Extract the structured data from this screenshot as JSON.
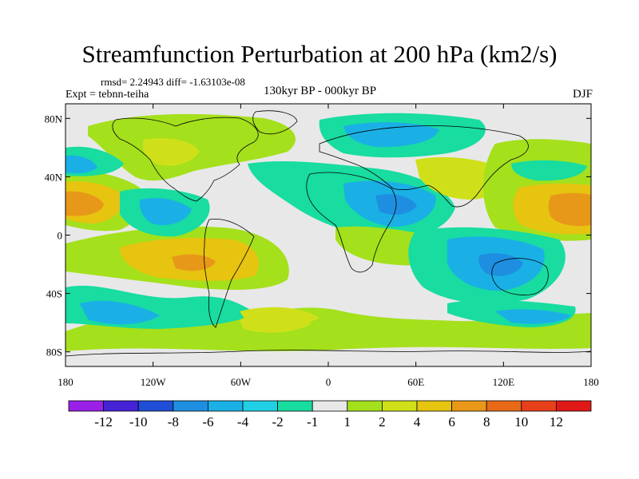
{
  "title": "Streamfunction Perturbation at 200 hPa (km2/s)",
  "stats_text": "rmsd= 2.24943 diff= -1.63103e-08",
  "experiment": "Expt = tebnn-teiha",
  "period": "130kyr BP - 000kyr BP",
  "season": "DJF",
  "lat_ticks": [
    "80N",
    "40N",
    "0",
    "40S",
    "80S"
  ],
  "lon_ticks": [
    "180",
    "120W",
    "60W",
    "0",
    "60E",
    "120E",
    "180"
  ],
  "colorbar": {
    "labels": [
      "-12",
      "-10",
      "-8",
      "-6",
      "-4",
      "-2",
      "-1",
      "1",
      "2",
      "4",
      "6",
      "8",
      "10",
      "12"
    ],
    "colors": [
      "#9a20e8",
      "#4422d6",
      "#1e4fd6",
      "#1e8fe0",
      "#1ab0e6",
      "#20cfe4",
      "#18dca0",
      "#e8e8e8",
      "#a4e01c",
      "#cfe01a",
      "#e6c410",
      "#e89818",
      "#e86a18",
      "#e8401a",
      "#e01818"
    ]
  },
  "chart_data": {
    "type": "heatmap",
    "title": "Streamfunction Perturbation at 200 hPa (km2/s)",
    "xlim": [
      -180,
      180
    ],
    "ylim": [
      -90,
      90
    ],
    "contour_levels": [
      -12,
      -10,
      -8,
      -6,
      -4,
      -2,
      -1,
      1,
      2,
      4,
      6,
      8,
      10,
      12
    ],
    "features": [
      {
        "name": "North Pacific positive",
        "lon": -170,
        "lat": 20,
        "value": 6
      },
      {
        "name": "Western Pacific positive",
        "lon": 165,
        "lat": 20,
        "value": 6
      },
      {
        "name": "South America positive",
        "lon": -95,
        "lat": -20,
        "value": 6
      },
      {
        "name": "Australia negative",
        "lon": 130,
        "lat": -25,
        "value": -6
      },
      {
        "name": "Middle East negative",
        "lon": 40,
        "lat": 25,
        "value": -4
      },
      {
        "name": "Eurasia Arctic negative",
        "lon": 45,
        "lat": 75,
        "value": -2
      },
      {
        "name": "Caribbean negative",
        "lon": -110,
        "lat": 15,
        "value": -4
      },
      {
        "name": "South Atlantic positive",
        "lon": -30,
        "lat": -60,
        "value": 4
      }
    ]
  }
}
